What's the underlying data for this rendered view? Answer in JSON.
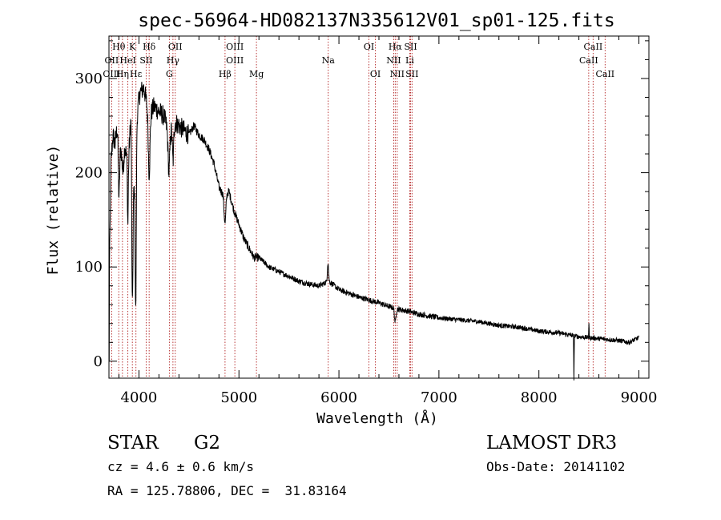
{
  "chart_data": {
    "type": "line",
    "title": "spec-56964-HD082137N335612V01_sp01-125.fits",
    "xlabel": "Wavelength (Å)",
    "ylabel": "Flux (relative)",
    "xlim": [
      3700,
      9100
    ],
    "ylim": [
      -18,
      345
    ],
    "xticks": [
      4000,
      5000,
      6000,
      7000,
      8000,
      9000
    ],
    "yticks": [
      0,
      100,
      200,
      300
    ],
    "xtick_labels": [
      "4000",
      "5000",
      "6000",
      "7000",
      "8000",
      "9000"
    ],
    "ytick_labels": [
      "0",
      "100",
      "200",
      "300"
    ],
    "spectrum_anchors": [
      [
        3700,
        5
      ],
      [
        3705,
        95
      ],
      [
        3720,
        210
      ],
      [
        3740,
        240
      ],
      [
        3760,
        230
      ],
      [
        3790,
        255
      ],
      [
        3820,
        225
      ],
      [
        3840,
        200
      ],
      [
        3860,
        230
      ],
      [
        3890,
        205
      ],
      [
        3920,
        260
      ],
      [
        3950,
        180
      ],
      [
        3980,
        260
      ],
      [
        4010,
        285
      ],
      [
        4050,
        290
      ],
      [
        4100,
        260
      ],
      [
        4150,
        270
      ],
      [
        4200,
        265
      ],
      [
        4250,
        260
      ],
      [
        4300,
        240
      ],
      [
        4350,
        255
      ],
      [
        4400,
        250
      ],
      [
        4450,
        245
      ],
      [
        4500,
        240
      ],
      [
        4550,
        250
      ],
      [
        4600,
        240
      ],
      [
        4650,
        235
      ],
      [
        4700,
        225
      ],
      [
        4750,
        210
      ],
      [
        4800,
        185
      ],
      [
        4850,
        175
      ],
      [
        4900,
        180
      ],
      [
        4950,
        160
      ],
      [
        5000,
        145
      ],
      [
        5050,
        130
      ],
      [
        5100,
        120
      ],
      [
        5150,
        110
      ],
      [
        5200,
        110
      ],
      [
        5250,
        105
      ],
      [
        5300,
        100
      ],
      [
        5400,
        95
      ],
      [
        5500,
        90
      ],
      [
        5600,
        85
      ],
      [
        5700,
        82
      ],
      [
        5800,
        80
      ],
      [
        5900,
        85
      ],
      [
        6000,
        76
      ],
      [
        6100,
        72
      ],
      [
        6200,
        68
      ],
      [
        6300,
        65
      ],
      [
        6400,
        62
      ],
      [
        6500,
        58
      ],
      [
        6600,
        55
      ],
      [
        6700,
        53
      ],
      [
        6800,
        50
      ],
      [
        6900,
        48
      ],
      [
        7000,
        46
      ],
      [
        7100,
        45
      ],
      [
        7200,
        44
      ],
      [
        7300,
        43
      ],
      [
        7400,
        42
      ],
      [
        7500,
        40
      ],
      [
        7600,
        38
      ],
      [
        7700,
        37
      ],
      [
        7800,
        36
      ],
      [
        7900,
        34
      ],
      [
        8000,
        32
      ],
      [
        8100,
        31
      ],
      [
        8200,
        30
      ],
      [
        8300,
        28
      ],
      [
        8400,
        26
      ],
      [
        8500,
        25
      ],
      [
        8600,
        24
      ],
      [
        8700,
        23
      ],
      [
        8800,
        22
      ],
      [
        8900,
        20
      ],
      [
        9000,
        25
      ]
    ],
    "absorption_dips": [
      [
        3800,
        70,
        10
      ],
      [
        3934,
        165,
        8
      ],
      [
        3968,
        175,
        8
      ],
      [
        3889,
        60,
        6
      ],
      [
        4102,
        60,
        12
      ],
      [
        4300,
        40,
        12
      ],
      [
        4341,
        40,
        10
      ],
      [
        4861,
        30,
        12
      ],
      [
        6563,
        15,
        10
      ],
      [
        8350,
        45,
        3
      ]
    ],
    "emission_spikes": [
      [
        5890,
        20,
        8
      ],
      [
        8500,
        15,
        3
      ]
    ],
    "line_markers": [
      {
        "label": "Hθ",
        "wavelength": 3798,
        "row": 0
      },
      {
        "label": "K",
        "wavelength": 3934,
        "row": 0
      },
      {
        "label": "Hδ",
        "wavelength": 4102,
        "row": 0
      },
      {
        "label": "OII",
        "wavelength": 4363,
        "row": 0
      },
      {
        "label": "OIII",
        "wavelength": 4959,
        "row": 0
      },
      {
        "label": "OI",
        "wavelength": 6300,
        "row": 0
      },
      {
        "label": "Hα",
        "wavelength": 6563,
        "row": 0
      },
      {
        "label": "SII",
        "wavelength": 6717,
        "row": 0
      },
      {
        "label": "CaII",
        "wavelength": 8542,
        "row": 0
      },
      {
        "label": "OII",
        "wavelength": 3727,
        "row": 1
      },
      {
        "label": "HeI",
        "wavelength": 3889,
        "row": 1
      },
      {
        "label": "SII",
        "wavelength": 4072,
        "row": 1
      },
      {
        "label": "Hγ",
        "wavelength": 4340,
        "row": 1
      },
      {
        "label": "OIII",
        "wavelength": 4959,
        "row": 1
      },
      {
        "label": "Na",
        "wavelength": 5893,
        "row": 1
      },
      {
        "label": "NII",
        "wavelength": 6548,
        "row": 1
      },
      {
        "label": "Li",
        "wavelength": 6708,
        "row": 1
      },
      {
        "label": "CaII",
        "wavelength": 8498,
        "row": 1
      },
      {
        "label": "OIII",
        "wavelength": 3727,
        "row": 2
      },
      {
        "label": "Hη",
        "wavelength": 3835,
        "row": 2
      },
      {
        "label": "Hε",
        "wavelength": 3970,
        "row": 2
      },
      {
        "label": "G",
        "wavelength": 4304,
        "row": 2
      },
      {
        "label": "Hβ",
        "wavelength": 4861,
        "row": 2
      },
      {
        "label": "Mg",
        "wavelength": 5175,
        "row": 2
      },
      {
        "label": "OI",
        "wavelength": 6364,
        "row": 2
      },
      {
        "label": "NII",
        "wavelength": 6583,
        "row": 2
      },
      {
        "label": "SII",
        "wavelength": 6731,
        "row": 2
      },
      {
        "label": "CaII",
        "wavelength": 8662,
        "row": 2
      }
    ],
    "marker_color": "#b22222",
    "line_color": "#000000"
  },
  "info": {
    "object_class": "STAR",
    "subclass": "G2",
    "survey": "LAMOST DR3",
    "redshift": "cz = 4.6 ± 0.6 km/s",
    "obs_date": "Obs-Date: 20141102",
    "coordinates": "RA = 125.78806, DEC =  31.83164"
  }
}
